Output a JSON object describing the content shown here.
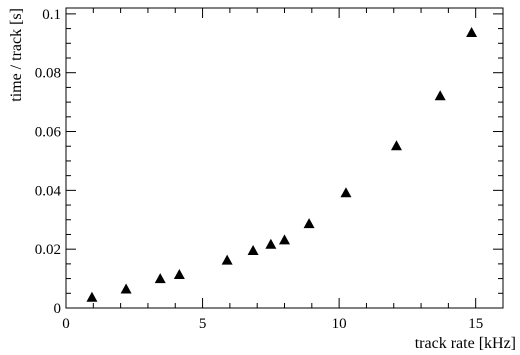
{
  "chart_data": {
    "type": "scatter",
    "title": "",
    "xlabel": "track rate [kHz]",
    "ylabel": "time / track [s]",
    "xlim": [
      0,
      16
    ],
    "ylim": [
      0,
      0.102
    ],
    "x_major_ticks": [
      0,
      5,
      10,
      15
    ],
    "x_tick_labels": [
      "0",
      "5",
      "10",
      "15"
    ],
    "x_minor_step": 1,
    "y_major_ticks": [
      0,
      0.02,
      0.04,
      0.06,
      0.08,
      0.1
    ],
    "y_tick_labels": [
      "0",
      "0.02",
      "0.04",
      "0.06",
      "0.08",
      "0.1"
    ],
    "y_minor_step": 0.005,
    "grid": false,
    "marker": "triangle",
    "series": [
      {
        "points": [
          {
            "x": 0.95,
            "y": 0.0035
          },
          {
            "x": 2.2,
            "y": 0.0063
          },
          {
            "x": 3.45,
            "y": 0.0098
          },
          {
            "x": 4.15,
            "y": 0.0112
          },
          {
            "x": 5.9,
            "y": 0.0161
          },
          {
            "x": 6.85,
            "y": 0.0194
          },
          {
            "x": 7.5,
            "y": 0.0215
          },
          {
            "x": 8.0,
            "y": 0.023
          },
          {
            "x": 8.9,
            "y": 0.0285
          },
          {
            "x": 10.25,
            "y": 0.039
          },
          {
            "x": 12.1,
            "y": 0.055
          },
          {
            "x": 13.7,
            "y": 0.072
          },
          {
            "x": 14.85,
            "y": 0.0935
          }
        ]
      }
    ]
  }
}
